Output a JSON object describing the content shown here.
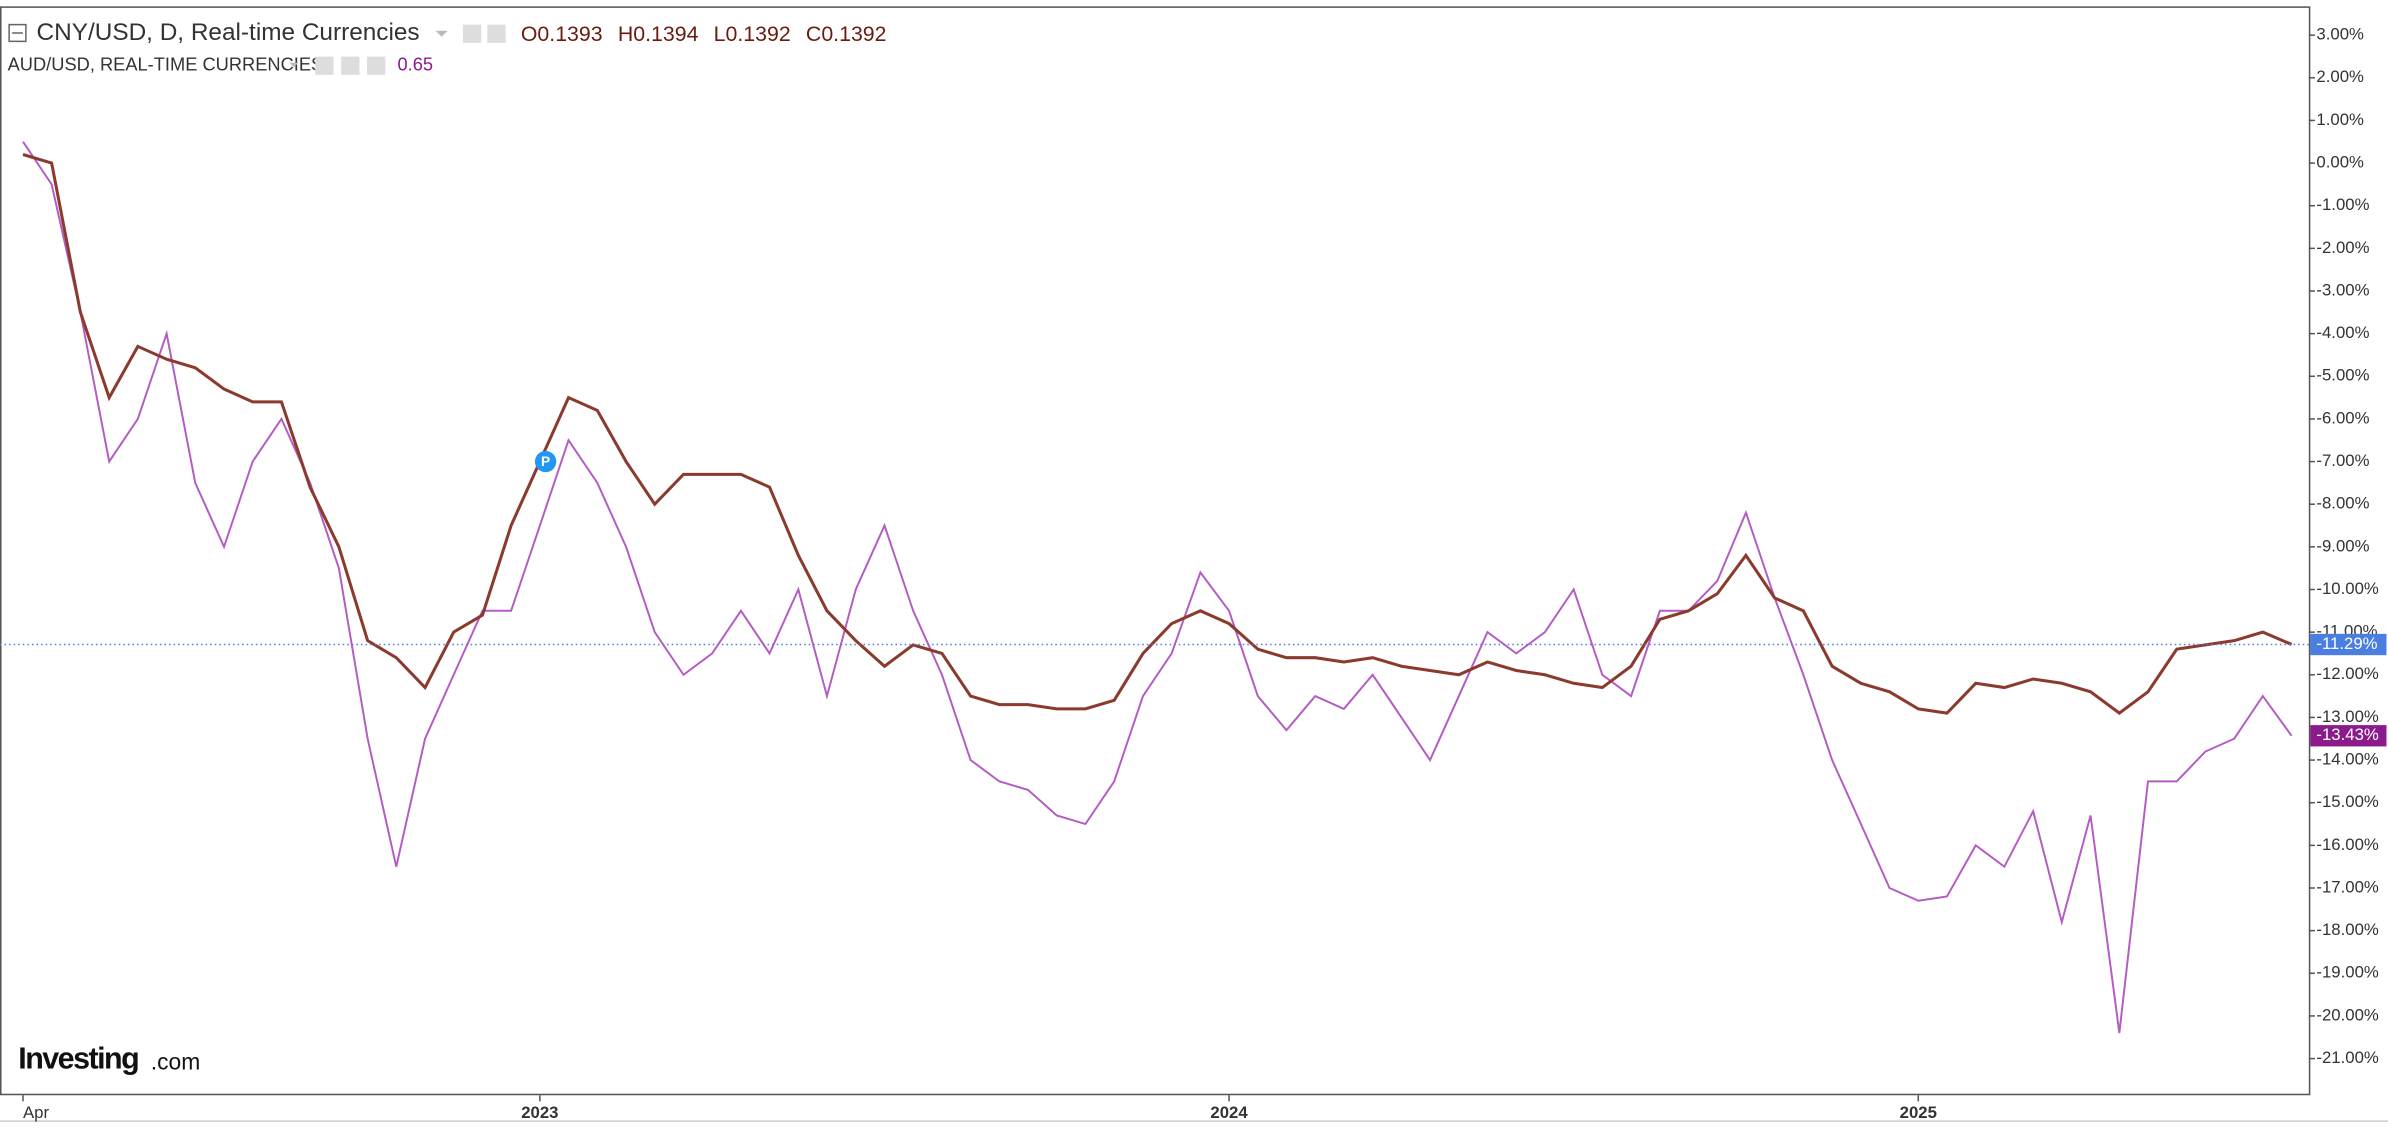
{
  "chart_data": {
    "type": "line",
    "ohlc_labels": [
      "O0.1393",
      "H0.1394",
      "L0.1392",
      "C0.1392"
    ],
    "logo": [
      "Investing",
      ".com"
    ],
    "marker_label": "P",
    "x": [
      0,
      0.5,
      1,
      1.5,
      2,
      2.5,
      3,
      3.5,
      4,
      4.5,
      5,
      5.5,
      6,
      6.5,
      7,
      7.5,
      8,
      8.5,
      9,
      9.5,
      10,
      10.5,
      11,
      11.5,
      12,
      12.5,
      13,
      13.5,
      14,
      14.5,
      15,
      15.5,
      16,
      16.5,
      17,
      17.5,
      18,
      18.5,
      19,
      19.5,
      20,
      20.5,
      21,
      21.5,
      22,
      22.5,
      23,
      23.5,
      24,
      24.5,
      25,
      25.5,
      26,
      26.5,
      27,
      27.5,
      28,
      28.5,
      29,
      29.5,
      30,
      30.5,
      31,
      31.5,
      32,
      32.5,
      33,
      33.5,
      34,
      34.5,
      35,
      35.5,
      36,
      36.5,
      37,
      37.5,
      38,
      38.5,
      39,
      39.5
    ],
    "series": [
      {
        "name": "CNY/USD, D, Real-time Currencies",
        "color": "#8b3a2e",
        "tag_color": "#4a7ee0",
        "last_label": "-11.29%",
        "values": [
          0.2,
          0,
          -3.5,
          -5.5,
          -4.3,
          -4.6,
          -4.8,
          -5.3,
          -5.6,
          -5.6,
          -7.6,
          -9,
          -11.2,
          -11.6,
          -12.3,
          -11,
          -10.6,
          -8.5,
          -7,
          -5.5,
          -5.8,
          -7,
          -8,
          -7.3,
          -7.3,
          -7.3,
          -7.6,
          -9.2,
          -10.5,
          -11.2,
          -11.8,
          -11.3,
          -11.5,
          -12.5,
          -12.7,
          -12.7,
          -12.8,
          -12.8,
          -12.6,
          -11.5,
          -10.8,
          -10.5,
          -10.8,
          -11.4,
          -11.6,
          -11.6,
          -11.7,
          -11.6,
          -11.8,
          -11.9,
          -12,
          -11.7,
          -11.9,
          -12,
          -12.2,
          -12.3,
          -11.8,
          -10.7,
          -10.5,
          -10.1,
          -9.2,
          -10.2,
          -10.5,
          -11.8,
          -12.2,
          -12.4,
          -12.8,
          -12.9,
          -12.2,
          -12.3,
          -12.1,
          -12.2,
          -12.4,
          -12.9,
          -12.4,
          -11.4,
          -11.3,
          -11.2,
          -11,
          -11.29
        ]
      },
      {
        "name": "AUD/USD, REAL-TIME CURRENCIES",
        "color": "#b45cc4",
        "tag_color": "#8b1a8b",
        "last_label": "-13.43%",
        "last_price": "0.65",
        "values": [
          0.5,
          -0.5,
          -3.5,
          -7,
          -6,
          -4,
          -7.5,
          -9,
          -7,
          -6,
          -7.5,
          -9.5,
          -13.5,
          -16.5,
          -13.5,
          -12,
          -10.5,
          -10.5,
          -8.5,
          -6.5,
          -7.5,
          -9,
          -11,
          -12,
          -11.5,
          -10.5,
          -11.5,
          -10,
          -12.5,
          -10,
          -8.5,
          -10.5,
          -12,
          -14,
          -14.5,
          -14.7,
          -15.3,
          -15.5,
          -14.5,
          -12.5,
          -11.5,
          -9.6,
          -10.5,
          -12.5,
          -13.3,
          -12.5,
          -12.8,
          -12,
          -13,
          -14,
          -12.5,
          -11,
          -11.5,
          -11,
          -10,
          -12,
          -12.5,
          -10.5,
          -10.5,
          -9.8,
          -8.2,
          -10.2,
          -12,
          -14,
          -15.5,
          -17,
          -17.3,
          -17.2,
          -16,
          -16.5,
          -15.2,
          -17.8,
          -15.3,
          -20.4,
          -14.5,
          -14.5,
          -13.8,
          -13.5,
          -12.5,
          -13.43
        ]
      }
    ],
    "xlim": [
      -0.4,
      39.8
    ],
    "xticks": [
      {
        "value": 0,
        "label": "Apr"
      },
      {
        "value": 9,
        "label": "2023"
      },
      {
        "value": 21,
        "label": "2024"
      },
      {
        "value": 33,
        "label": "2025"
      }
    ],
    "ylim": [
      -21.86,
      3.64
    ],
    "yticks": [
      {
        "value": 3,
        "label": "3.00%"
      },
      {
        "value": 2,
        "label": "2.00%"
      },
      {
        "value": 1,
        "label": "1.00%"
      },
      {
        "value": 0,
        "label": "0.00%"
      },
      {
        "value": -1,
        "label": "-1.00%"
      },
      {
        "value": -2,
        "label": "-2.00%"
      },
      {
        "value": -3,
        "label": "-3.00%"
      },
      {
        "value": -4,
        "label": "-4.00%"
      },
      {
        "value": -5,
        "label": "-5.00%"
      },
      {
        "value": -6,
        "label": "-6.00%"
      },
      {
        "value": -7,
        "label": "-7.00%"
      },
      {
        "value": -8,
        "label": "-8.00%"
      },
      {
        "value": -9,
        "label": "-9.00%"
      },
      {
        "value": -10,
        "label": "-10.00%"
      },
      {
        "value": -11,
        "label": "-11.00%"
      },
      {
        "value": -12,
        "label": "-12.00%"
      },
      {
        "value": -13,
        "label": "-13.00%"
      },
      {
        "value": -14,
        "label": "-14.00%"
      },
      {
        "value": -15,
        "label": "-15.00%"
      },
      {
        "value": -16,
        "label": "-16.00%"
      },
      {
        "value": -17,
        "label": "-17.00%"
      },
      {
        "value": -18,
        "label": "-18.00%"
      },
      {
        "value": -19,
        "label": "-19.00%"
      },
      {
        "value": -20,
        "label": "-20.00%"
      },
      {
        "value": -21,
        "label": "-21.00%"
      }
    ],
    "grid": false
  }
}
